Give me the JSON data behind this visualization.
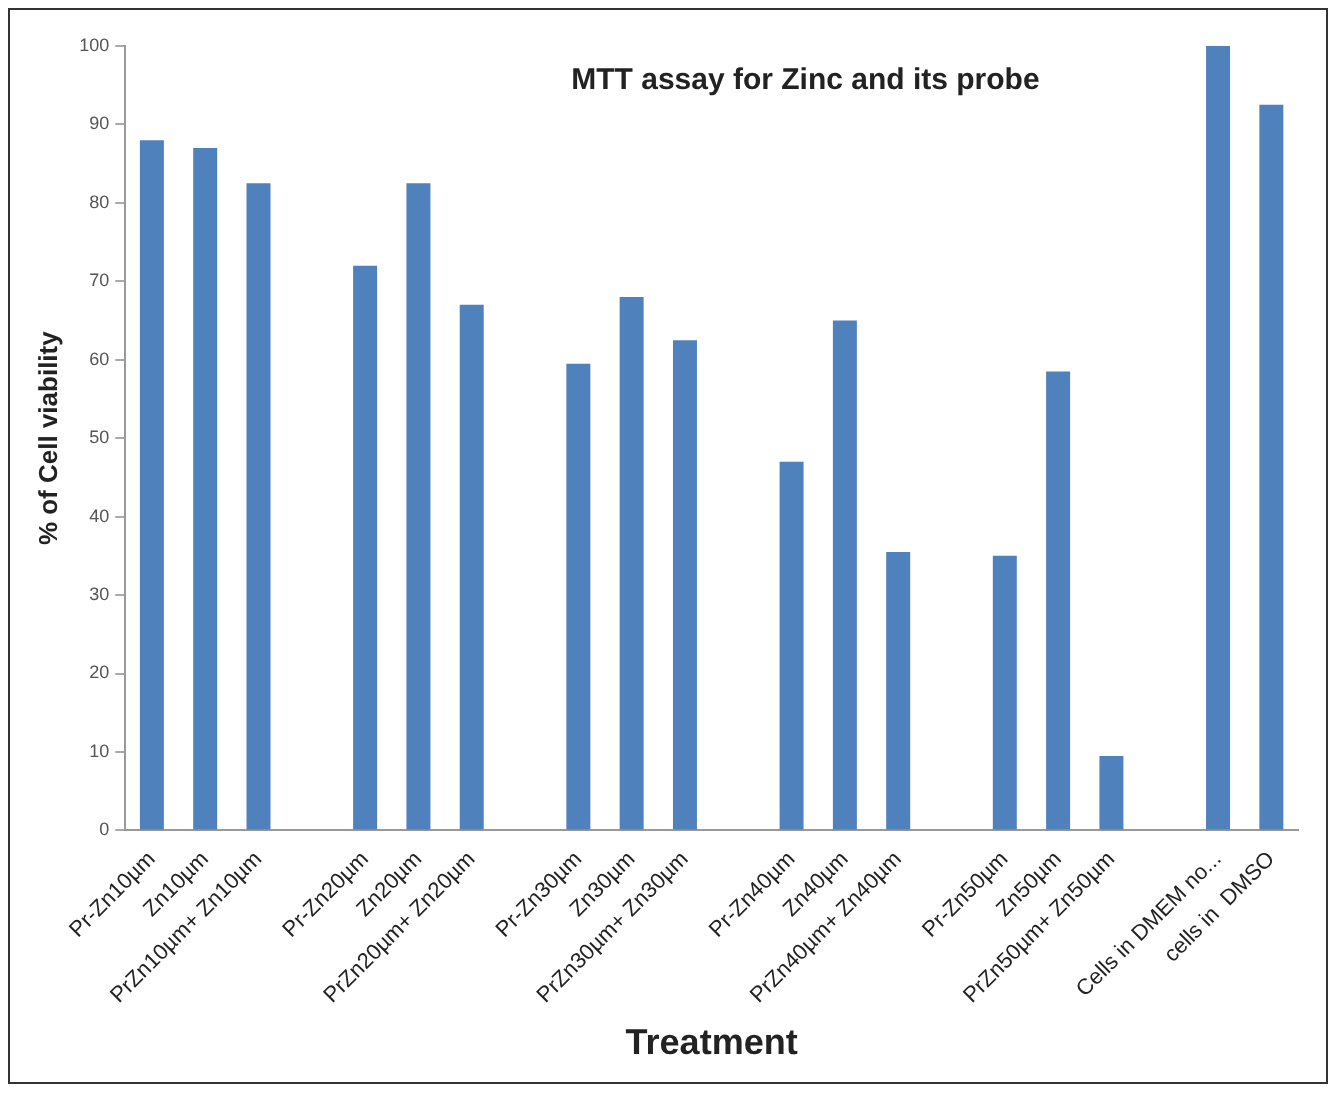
{
  "chart_data": {
    "type": "bar",
    "title": "MTT assay for Zinc and its probe",
    "xlabel": "Treatment",
    "ylabel": "% of Cell viability",
    "categories": [
      "Pr-Zn10µm",
      "Zn10µm",
      "PrZn10µm+ Zn10µm",
      null,
      "Pr-Zn20µm",
      "Zn20µm",
      "PrZn20µm+ Zn20µm",
      null,
      "Pr-Zn30µm",
      "Zn30µm",
      "PrZn30µm+ Zn30µm",
      null,
      "Pr-Zn40µm",
      "Zn40µm",
      "PrZn40µm+ Zn40µm",
      null,
      "Pr-Zn50µm",
      "Zn50µm",
      "PrZn50µm+ Zn50µm",
      null,
      "Cells in DMEM no...",
      "cells in  DMSO"
    ],
    "values": [
      88,
      87,
      82.5,
      null,
      72,
      82.5,
      67,
      null,
      59.5,
      68,
      62.5,
      null,
      47,
      65,
      35.5,
      null,
      35,
      58.5,
      9.5,
      null,
      100,
      92.5
    ],
    "color": "#4f81bd",
    "ylim": [
      0,
      100
    ],
    "yticks": [
      0,
      10,
      20,
      30,
      40,
      50,
      60,
      70,
      80,
      90,
      100
    ],
    "grid": false,
    "legend": false
  }
}
